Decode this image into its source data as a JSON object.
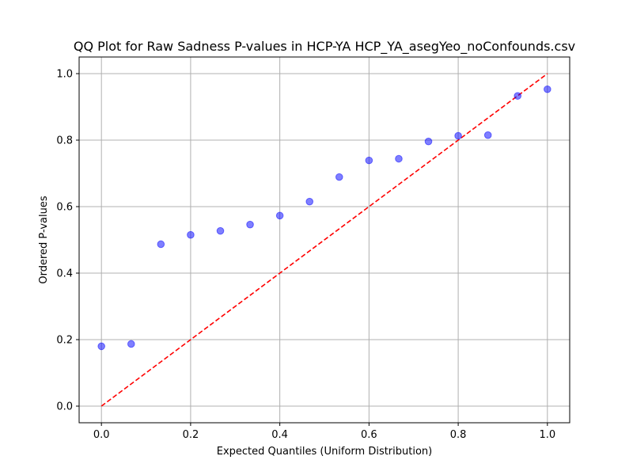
{
  "chart_data": {
    "type": "scatter",
    "title": "QQ Plot for Raw Sadness P-values in HCP-YA HCP_YA_asegYeo_noConfounds.csv",
    "xlabel": "Expected Quantiles (Uniform Distribution)",
    "ylabel": "Ordered P-values",
    "xlim": [
      -0.05,
      1.05
    ],
    "ylim": [
      -0.05,
      1.05
    ],
    "xticks": [
      0.0,
      0.2,
      0.4,
      0.6,
      0.8,
      1.0
    ],
    "yticks": [
      0.0,
      0.2,
      0.4,
      0.6,
      0.8,
      1.0
    ],
    "xtick_labels": [
      "0.0",
      "0.2",
      "0.4",
      "0.6",
      "0.8",
      "1.0"
    ],
    "ytick_labels": [
      "0.0",
      "0.2",
      "0.4",
      "0.6",
      "0.8",
      "1.0"
    ],
    "grid": true,
    "series": [
      {
        "type": "scatter",
        "color": "#0000ff",
        "x": [
          0.0,
          0.0667,
          0.1333,
          0.2,
          0.2667,
          0.3333,
          0.4,
          0.4667,
          0.5333,
          0.6,
          0.6667,
          0.7333,
          0.8,
          0.8667,
          0.9333,
          1.0
        ],
        "y": [
          0.18,
          0.187,
          0.487,
          0.515,
          0.527,
          0.546,
          0.573,
          0.615,
          0.689,
          0.739,
          0.744,
          0.796,
          0.813,
          0.815,
          0.933,
          0.953
        ]
      },
      {
        "type": "line",
        "style": "dashed",
        "color": "#ff0000",
        "x": [
          0.0,
          1.0
        ],
        "y": [
          0.0,
          1.0
        ]
      }
    ]
  }
}
